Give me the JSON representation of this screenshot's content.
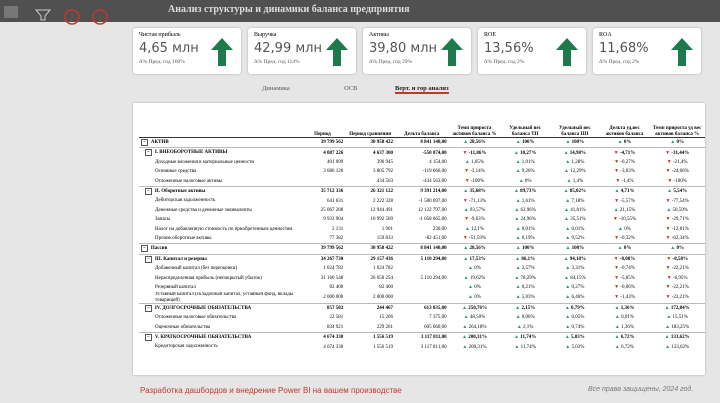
{
  "header": {
    "title": "Анализ структуры и динамики баланса предприятия"
  },
  "kpis": [
    {
      "title": "Чистая прибыль",
      "value": "4,65 млн",
      "note": "Δ% Пред. год 160%"
    },
    {
      "title": "Выручка",
      "value": "42,99 млн",
      "note": "Δ% Пред. год 114%"
    },
    {
      "title": "Активы",
      "value": "39,80 млн",
      "note": "Δ% Пред. год 29%"
    },
    {
      "title": "ROE",
      "value": "13,56%",
      "note": "Δ% Пред. год 2%"
    },
    {
      "title": "ROA",
      "value": "11,68%",
      "note": "Δ% Пред. год 2%"
    }
  ],
  "tabs": [
    "Динамика",
    "ОСВ",
    "Верт. и гор анализ"
  ],
  "active_tab": 2,
  "table": {
    "columns": [
      "Период",
      "Период сравнения",
      "Дельта баланса",
      "Темп прироста активов баланса %",
      "Удельный вес баланса ТП",
      "Удельный вес баланса ПП",
      "Дельта уд.вес активов баланса",
      "Темп прироста уд вес активов баланса %"
    ],
    "rows": [
      {
        "label": "АКТИВ",
        "cells": [
          "39 799 562",
          "30 958 422",
          "8 841 140,00",
          "28,56%",
          "100%",
          "100%",
          "0%",
          "0%"
        ]
      },
      {
        "label": "I. ВНЕОБОРОТНЫЕ АКТИВЫ",
        "cells": [
          "4 087 226",
          "4 637 300",
          "-550 074,00",
          "-11,86%",
          "10,27%",
          "14,98%",
          "-4,71%",
          "-31,44%"
        ]
      },
      {
        "label": "Доходные вложения в материальные ценности",
        "cells": [
          "401 099",
          "396 945",
          "4 154,00",
          "1,05%",
          "1,01%",
          "1,28%",
          "-0,27%",
          "-21,4%"
        ]
      },
      {
        "label": "Основные средства",
        "cells": [
          "3 686 126",
          "3 805 792",
          "-119 666,00",
          "-3,14%",
          "9,26%",
          "12,29%",
          "-3,03%",
          "-24,66%"
        ]
      },
      {
        "label": "Отложенные налоговые активы",
        "cells": [
          null,
          "434 563",
          "-434 563,00",
          "-100%",
          "0%",
          "1,4%",
          "-1,4%",
          "-100%"
        ]
      },
      {
        "label": "II. Оборотные активы",
        "cells": [
          "35 712 336",
          "26 321 122",
          "9 391 214,00",
          "35,68%",
          "89,73%",
          "85,02%",
          "4,71%",
          "5,54%"
        ]
      },
      {
        "label": "Дебиторская задолженность",
        "cells": [
          "641 631",
          "2 222 328",
          "-1 580 697,00",
          "-71,13%",
          "1,61%",
          "7,18%",
          "-5,57%",
          "-77,54%"
        ]
      },
      {
        "label": "Денежные средства и денежные эквиваленты",
        "cells": [
          "25 067 288",
          "12 944 491",
          "12 122 797,00",
          "93,57%",
          "62,96%",
          "41,81%",
          "21,15%",
          "50,59%"
        ]
      },
      {
        "label": "Запасы",
        "cells": [
          "9 933 904",
          "10 992 569",
          "-1 058 665,00",
          "-9,63%",
          "24,96%",
          "35,51%",
          "-10,55%",
          "-29,71%"
        ]
      },
      {
        "label": "Налог на добавленную стоимость по приобретенным ценностям",
        "cells": [
          "2 131",
          "1 901",
          "230,00",
          "12,1%",
          "0,01%",
          "0,01%",
          "0%",
          "-12,81%"
        ]
      },
      {
        "label": "Прочие оборотные активы",
        "cells": [
          "77 382",
          "159 833",
          "-82 451,00",
          "-51,59%",
          "0,19%",
          "0,52%",
          "-0,32%",
          "-62,34%"
        ]
      },
      {
        "label": "Пассив",
        "cells": [
          "39 799 562",
          "30 958 422",
          "8 841 140,00",
          "28,56%",
          "100%",
          "100%",
          "0%",
          "0%"
        ]
      },
      {
        "label": "III. Капитал и резервы",
        "cells": [
          "34 267 730",
          "29 157 436",
          "5 110 294,00",
          "17,53%",
          "86,1%",
          "94,18%",
          "-8,08%",
          "-8,58%"
        ]
      },
      {
        "label": "Добавочный капитал (без переоценки)",
        "cells": [
          "1 024 782",
          "1 024 782",
          null,
          "0%",
          "2,57%",
          "3,31%",
          "-0,74%",
          "-22,21%"
        ]
      },
      {
        "label": "Нераспределенная прибыль (непокрытый убыток)",
        "cells": [
          "31 160 548",
          "26 050 254",
          "5 110 294,00",
          "19,62%",
          "78,29%",
          "84,15%",
          "-5,85%",
          "-6,95%"
        ]
      },
      {
        "label": "Резервный капитал",
        "cells": [
          "82 400",
          "82 400",
          null,
          "0%",
          "0,21%",
          "0,27%",
          "-0,06%",
          "-22,21%"
        ]
      },
      {
        "label": "Уставный капитал (складочный капитал, уставный фонд, вклады товарищей)",
        "cells": [
          "2 000 000",
          "2 000 000",
          null,
          "0%",
          "5,03%",
          "6,46%",
          "-1,43%",
          "-22,21%"
        ]
      },
      {
        "label": "IV. ДОЛГОСРОЧНЫЕ ОБЯЗАТЕЛЬСТВА",
        "cells": [
          "857 502",
          "244 467",
          "613 035,00",
          "250,76%",
          "2,15%",
          "0,79%",
          "1,36%",
          "172,84%"
        ]
      },
      {
        "label": "Отложенные налоговые обязательства",
        "cells": [
          "22 581",
          "15 206",
          "7 375,00",
          "48,50%",
          "0,06%",
          "0,05%",
          "0,01%",
          "15,51%"
        ]
      },
      {
        "label": "Оценочные обязательства",
        "cells": [
          "834 921",
          "229 261",
          "605 660,00",
          "264,18%",
          "2,1%",
          "0,74%",
          "1,36%",
          "183,25%"
        ]
      },
      {
        "label": "V. КРАТКОСРОЧНЫЕ ОБЯЗАТЕЛЬСТВА",
        "cells": [
          "4 674 330",
          "1 556 519",
          "3 117 811,00",
          "200,31%",
          "11,74%",
          "5,03%",
          "6,72%",
          "133,62%"
        ]
      },
      {
        "label": "Кредиторская задолженность",
        "cells": [
          "4 674 330",
          "1 556 519",
          "3 117 811,00",
          "200,31%",
          "11,74%",
          "5,03%",
          "6,72%",
          "133,62%"
        ]
      }
    ]
  },
  "footer": {
    "left": "Разработка дашбордов и внедрение Power BI на вашем производстве",
    "right": "Все права защищены, 2024 год."
  }
}
